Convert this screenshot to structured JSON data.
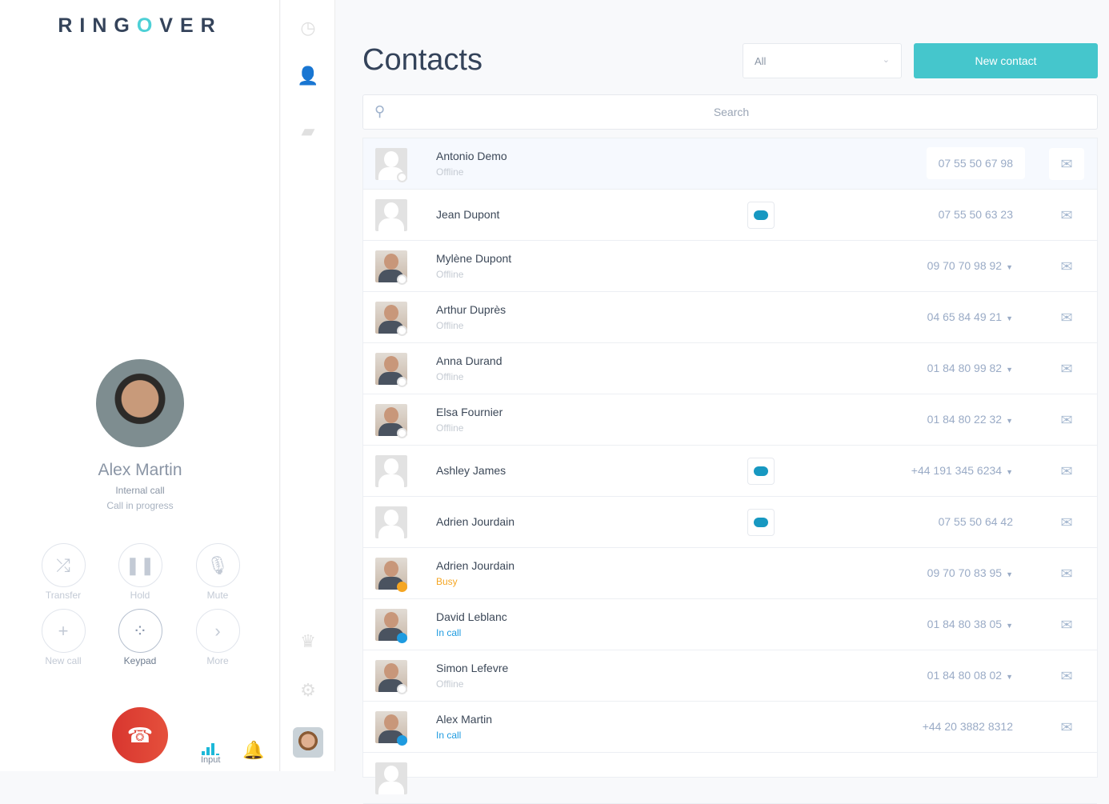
{
  "brand": {
    "logo_pre": "RING",
    "logo_o": "O",
    "logo_post": "VER"
  },
  "call": {
    "name": "Alex Martin",
    "type": "Internal call",
    "status": "Call in progress",
    "buttons": [
      {
        "label": "Transfer",
        "icon": "shuffle-icon",
        "glyph": "⤮"
      },
      {
        "label": "Hold",
        "icon": "pause-icon",
        "glyph": "❚❚"
      },
      {
        "label": "Mute",
        "icon": "mic-off-icon",
        "glyph": "🎙"
      },
      {
        "label": "New call",
        "icon": "plus-icon",
        "glyph": "+"
      },
      {
        "label": "Keypad",
        "icon": "keypad-icon",
        "glyph": "⁘"
      },
      {
        "label": "More",
        "icon": "chevron-right-icon",
        "glyph": "›"
      }
    ],
    "input_label": "Input"
  },
  "main": {
    "title": "Contacts",
    "filter": "All",
    "new_contact": "New contact",
    "search_placeholder": "Search"
  },
  "contacts": [
    {
      "name": "Antonio Demo",
      "status": "Offline",
      "phone": "07 55 50 67 98",
      "photo": false,
      "salesforce": false,
      "dropdown": false
    },
    {
      "name": "Jean Dupont",
      "status": "",
      "phone": "07 55 50 63 23",
      "photo": false,
      "salesforce": true,
      "dropdown": false
    },
    {
      "name": "Mylène Dupont",
      "status": "Offline",
      "phone": "09 70 70 98 92",
      "photo": true,
      "salesforce": false,
      "dropdown": true
    },
    {
      "name": "Arthur Duprès",
      "status": "Offline",
      "phone": "04 65 84 49 21",
      "photo": true,
      "salesforce": false,
      "dropdown": true
    },
    {
      "name": "Anna Durand",
      "status": "Offline",
      "phone": "01 84 80 99 82",
      "photo": true,
      "salesforce": false,
      "dropdown": true
    },
    {
      "name": "Elsa Fournier",
      "status": "Offline",
      "phone": "01 84 80 22 32",
      "photo": true,
      "salesforce": false,
      "dropdown": true
    },
    {
      "name": "Ashley James",
      "status": "",
      "phone": "+44 191 345 6234",
      "photo": false,
      "salesforce": true,
      "dropdown": true
    },
    {
      "name": "Adrien Jourdain",
      "status": "",
      "phone": "07 55 50 64 42",
      "photo": false,
      "salesforce": true,
      "dropdown": false
    },
    {
      "name": "Adrien Jourdain",
      "status": "Busy",
      "phone": "09 70 70 83 95",
      "photo": true,
      "salesforce": false,
      "dropdown": true
    },
    {
      "name": "David Leblanc",
      "status": "In call",
      "phone": "01 84 80 38 05",
      "photo": true,
      "salesforce": false,
      "dropdown": true
    },
    {
      "name": "Simon Lefevre",
      "status": "Offline",
      "phone": "01 84 80 08 02",
      "photo": true,
      "salesforce": false,
      "dropdown": true
    },
    {
      "name": "Alex Martin",
      "status": "In call",
      "phone": "+44 20 3882 8312",
      "photo": true,
      "salesforce": false,
      "dropdown": false
    }
  ],
  "colors": {
    "accent": "#45c6cc",
    "hangup": "#d8362f",
    "busy": "#f5a623",
    "in_call": "#1e9be0"
  }
}
